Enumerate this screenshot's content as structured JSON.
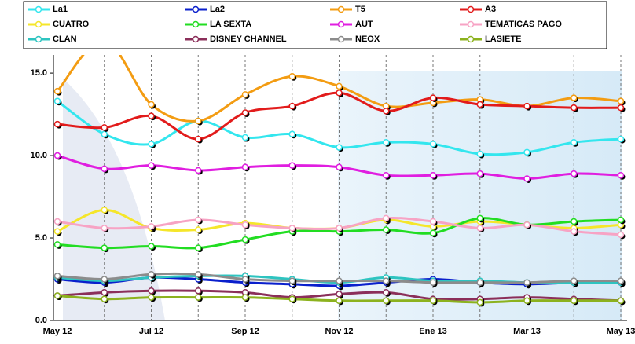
{
  "chart_data": {
    "type": "line",
    "categories": [
      "May 12",
      null,
      "Jul 12",
      null,
      "Sep 12",
      null,
      "Nov 12",
      null,
      "Ene 13",
      null,
      "Mar 13",
      null,
      "May 13"
    ],
    "ylim": [
      0,
      16.1
    ],
    "yticks": [
      {
        "value": 0,
        "label": "0.0"
      },
      {
        "value": 5,
        "label": "5.0"
      },
      {
        "value": 10,
        "label": "10.0"
      },
      {
        "value": 15,
        "label": "15.0"
      }
    ],
    "smooth": true,
    "series": [
      {
        "name": "La1",
        "color": "#33e6ee",
        "values": [
          13.3,
          11.3,
          10.7,
          12.1,
          11.1,
          11.3,
          10.5,
          10.8,
          10.7,
          10.1,
          10.2,
          10.8,
          11.0
        ]
      },
      {
        "name": "La2",
        "color": "#0a1fcc",
        "values": [
          2.5,
          2.3,
          2.6,
          2.5,
          2.3,
          2.2,
          2.1,
          2.3,
          2.5,
          2.3,
          2.2,
          2.3,
          2.3
        ]
      },
      {
        "name": "T5",
        "color": "#f39c12",
        "values": [
          13.9,
          17.0,
          13.1,
          12.1,
          13.7,
          14.8,
          14.2,
          13.0,
          13.2,
          13.4,
          13.0,
          13.5,
          13.3
        ]
      },
      {
        "name": "A3",
        "color": "#e21b1b",
        "values": [
          11.9,
          11.7,
          12.4,
          11.0,
          12.6,
          13.0,
          13.8,
          12.7,
          13.5,
          13.1,
          13.0,
          12.9,
          12.9
        ]
      },
      {
        "name": "CUATRO",
        "color": "#f5e62a",
        "values": [
          5.4,
          6.7,
          5.6,
          5.5,
          5.9,
          5.6,
          5.6,
          6.1,
          5.7,
          6.0,
          5.8,
          5.6,
          5.8
        ]
      },
      {
        "name": "LA SEXTA",
        "color": "#22dd22",
        "values": [
          4.6,
          4.4,
          4.5,
          4.4,
          4.9,
          5.4,
          5.4,
          5.5,
          5.3,
          6.2,
          5.8,
          6.0,
          6.1
        ]
      },
      {
        "name": "AUT",
        "color": "#e01ee0",
        "values": [
          10.0,
          9.2,
          9.4,
          9.1,
          9.3,
          9.4,
          9.3,
          8.8,
          8.8,
          8.9,
          8.6,
          8.9,
          8.8
        ]
      },
      {
        "name": "TEMATICAS PAGO",
        "color": "#f7a3c4",
        "values": [
          6.0,
          5.6,
          5.7,
          6.1,
          5.8,
          5.6,
          5.6,
          6.2,
          6.0,
          5.6,
          5.8,
          5.4,
          5.2
        ]
      },
      {
        "name": "CLAN",
        "color": "#2ec4c0",
        "values": [
          2.6,
          2.4,
          2.6,
          2.7,
          2.7,
          2.5,
          2.3,
          2.6,
          2.4,
          2.4,
          2.3,
          2.3,
          2.3
        ]
      },
      {
        "name": "DISNEY CHANNEL",
        "color": "#8b2f5a",
        "values": [
          1.5,
          1.7,
          1.8,
          1.8,
          1.7,
          1.4,
          1.6,
          1.7,
          1.3,
          1.3,
          1.4,
          1.3,
          1.2
        ]
      },
      {
        "name": "NEOX",
        "color": "#8c8c8c",
        "values": [
          2.7,
          2.5,
          2.8,
          2.8,
          2.5,
          2.4,
          2.4,
          2.4,
          2.3,
          2.3,
          2.3,
          2.4,
          2.4
        ]
      },
      {
        "name": "LASIETE",
        "color": "#8cb21e",
        "values": [
          1.5,
          1.3,
          1.4,
          1.4,
          1.4,
          1.3,
          1.2,
          1.2,
          1.2,
          1.1,
          1.2,
          1.2,
          1.2
        ]
      }
    ]
  }
}
